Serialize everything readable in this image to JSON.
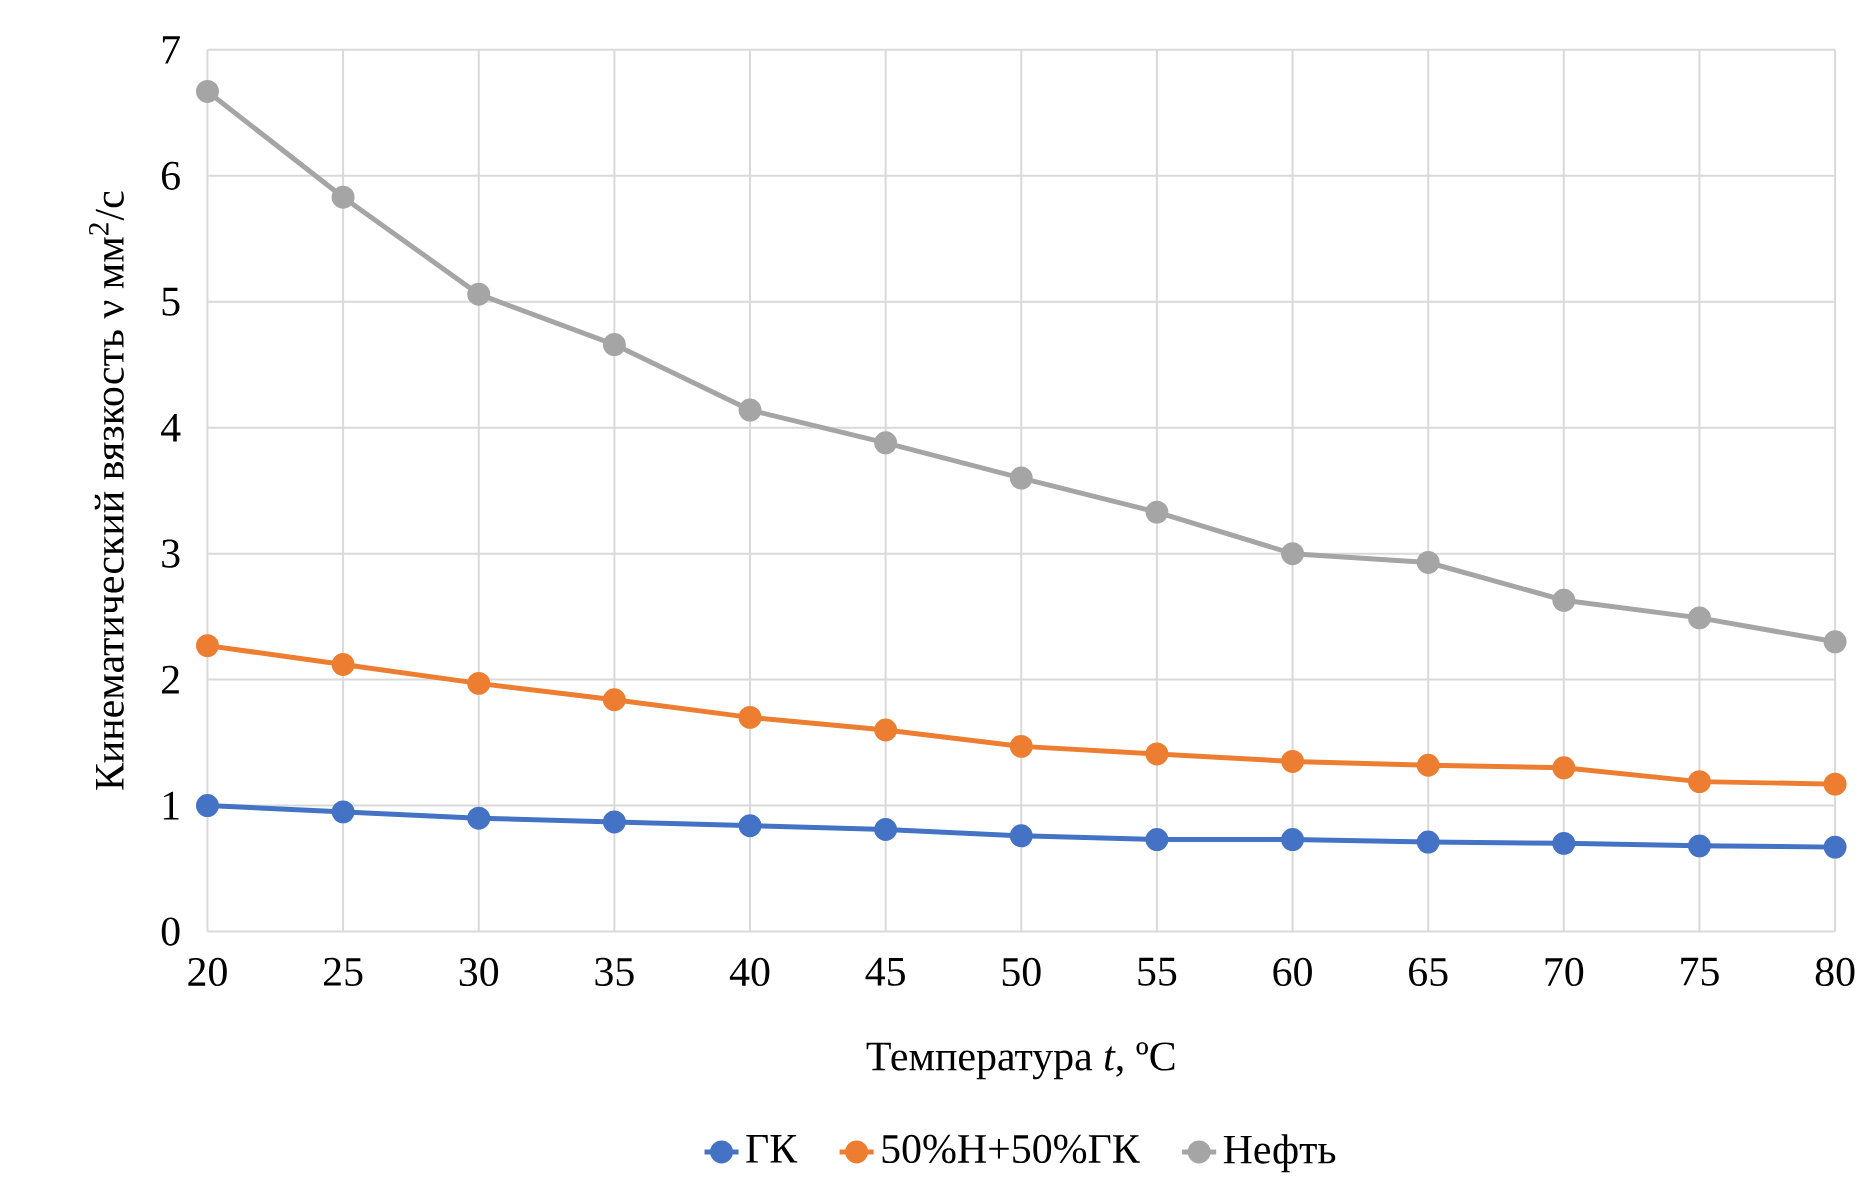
{
  "chart_data": {
    "type": "line",
    "xlabel": "Температура *t*, ºС",
    "ylabel": "Кинематический вязкость ν  мм$^{2}$/с",
    "x": [
      20,
      25,
      30,
      35,
      40,
      45,
      50,
      55,
      60,
      65,
      70,
      75,
      80
    ],
    "series": [
      {
        "name": "ГК",
        "color": "#4472c4",
        "values": [
          1.0,
          0.95,
          0.9,
          0.87,
          0.84,
          0.81,
          0.76,
          0.73,
          0.73,
          0.71,
          0.7,
          0.68,
          0.67
        ]
      },
      {
        "name": "50%Н+50%ГК",
        "color": "#ed7d31",
        "values": [
          2.27,
          2.12,
          1.97,
          1.84,
          1.7,
          1.6,
          1.47,
          1.41,
          1.35,
          1.32,
          1.3,
          1.19,
          1.17
        ]
      },
      {
        "name": "Нефть",
        "color": "#a5a5a5",
        "values": [
          6.67,
          5.83,
          5.06,
          4.66,
          4.14,
          3.88,
          3.6,
          3.33,
          3.0,
          2.93,
          2.63,
          2.49,
          2.3
        ]
      }
    ],
    "xlim": [
      20,
      80
    ],
    "xticks": [
      20,
      25,
      30,
      35,
      40,
      45,
      50,
      55,
      60,
      65,
      70,
      75,
      80
    ],
    "ylim": [
      0,
      7
    ],
    "yticks": [
      0,
      1,
      2,
      3,
      4,
      5,
      6,
      7
    ],
    "grid": true,
    "legend": "bottom",
    "marker": "circle",
    "line_style": "solid"
  }
}
